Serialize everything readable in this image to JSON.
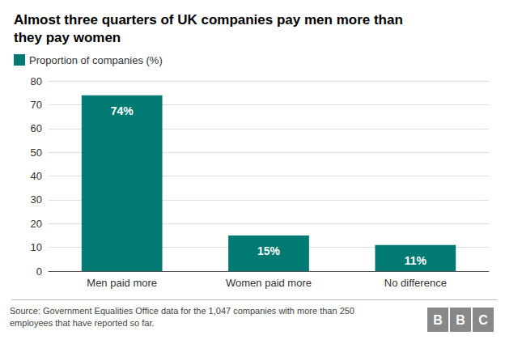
{
  "chart_data": {
    "type": "bar",
    "title": "Almost three quarters of UK companies pay men more than\nthey pay women",
    "categories": [
      "Men paid more",
      "Women paid more",
      "No difference"
    ],
    "series": [
      {
        "name": "Proportion of companies (%)",
        "color": "#007A73",
        "values": [
          74,
          15,
          11
        ],
        "value_labels": [
          "74%",
          "15%",
          "11%"
        ]
      }
    ],
    "ylim": [
      0,
      80
    ],
    "yticks": [
      0,
      10,
      20,
      30,
      40,
      50,
      60,
      70,
      80
    ],
    "grid": true,
    "legend": "upper left",
    "data_labels": true,
    "annotations": [
      "Source: Government Equalities Office data for the 1,047 companies with more than 250\nemployees that have reported so far.",
      "BBC"
    ]
  }
}
